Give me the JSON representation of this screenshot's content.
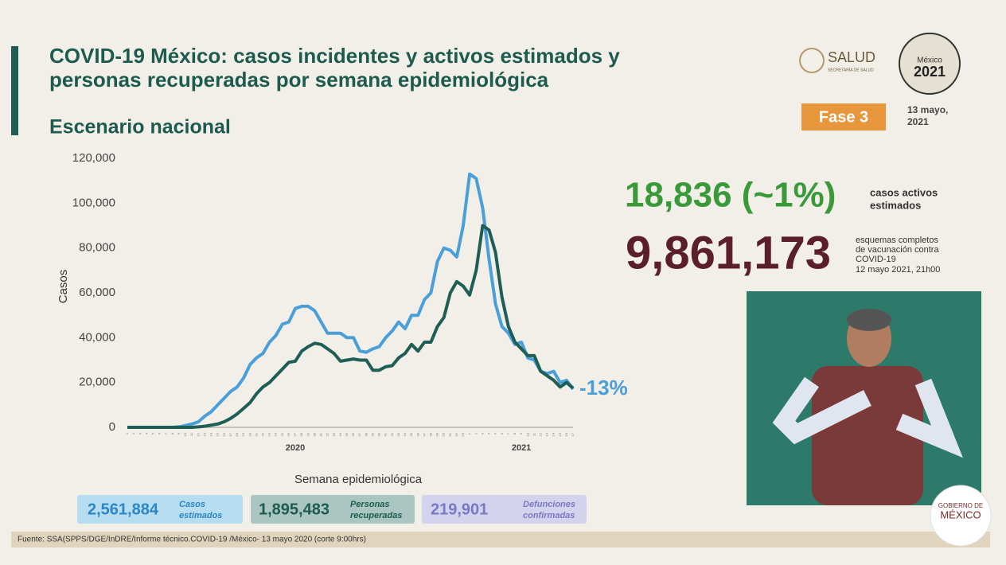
{
  "header": {
    "title": [
      "COVID-19 México: casos incidentes y activos estimados y",
      "personas recuperadas por semana epidemiológica"
    ],
    "subtitle": "Escenario nacional",
    "agency": "SALUD",
    "agency_sub": "SECRETARÍA DE SALUD",
    "logo": [
      "México",
      "2021"
    ],
    "phase": "Fase 3",
    "date": [
      "13 mayo,",
      "2021"
    ]
  },
  "chart_data": {
    "type": "line",
    "xlabel": "Semana epidemiológica",
    "ylabel": "Casos",
    "categories": [
      "1",
      "2",
      "3",
      "4",
      "5",
      "6",
      "7",
      "8",
      "9",
      "10",
      "11",
      "12",
      "13",
      "14",
      "15",
      "16",
      "17",
      "18",
      "19",
      "20",
      "21",
      "22",
      "23",
      "24",
      "25",
      "26",
      "27",
      "28",
      "29",
      "30",
      "31",
      "32",
      "33",
      "34",
      "35",
      "36",
      "37",
      "38",
      "39",
      "40",
      "41",
      "42",
      "43",
      "44",
      "45",
      "46",
      "47",
      "48",
      "49",
      "50",
      "51",
      "52",
      "53",
      "1",
      "2",
      "3",
      "4",
      "5",
      "6",
      "7",
      "8",
      "9",
      "10",
      "11",
      "12",
      "13",
      "14",
      "15",
      "16",
      "17"
    ],
    "year_labels": [
      "2020",
      "2021"
    ],
    "series": [
      {
        "color": "#4a9fd8",
        "values": [
          0,
          0,
          0,
          0,
          0,
          0,
          0,
          0,
          200,
          800,
          1500,
          2500,
          5000,
          7000,
          10000,
          13000,
          16000,
          18000,
          22000,
          28000,
          31000,
          33000,
          38000,
          41000,
          46000,
          47000,
          53000,
          54000,
          54000,
          52000,
          47000,
          42000,
          42000,
          42000,
          40000,
          40000,
          34000,
          33500,
          35000,
          36000,
          40000,
          43000,
          47000,
          44000,
          50000,
          50000,
          57000,
          60000,
          74000,
          80000,
          79000,
          76000,
          90000,
          113000,
          111000,
          98000,
          75000,
          55000,
          45000,
          42000,
          37000,
          38000,
          31000,
          30000,
          25000,
          24000,
          25000,
          20000,
          21000,
          17000
        ]
      },
      {
        "color": "#1f5e55",
        "values": [
          0,
          0,
          0,
          0,
          0,
          0,
          0,
          0,
          0,
          0,
          0,
          200,
          500,
          1000,
          1500,
          2500,
          4000,
          6000,
          8500,
          11000,
          15000,
          18000,
          20000,
          23000,
          26000,
          29000,
          29500,
          34000,
          36000,
          37500,
          37000,
          35000,
          33000,
          29500,
          30000,
          30500,
          30000,
          30000,
          25500,
          25500,
          27000,
          27500,
          31000,
          33000,
          37000,
          34000,
          38000,
          38000,
          45000,
          49000,
          60000,
          65000,
          63000,
          59000,
          70000,
          90000,
          88000,
          78000,
          58000,
          45000,
          38000,
          35000,
          32000,
          32000,
          25000,
          23000,
          21000,
          18000,
          20000,
          17500
        ]
      }
    ],
    "ylim": [
      0,
      120000
    ],
    "yticks": [
      0,
      {
        "value": 20000,
        "label": "20,000"
      },
      {
        "value": 40000,
        "label": "40,000"
      },
      {
        "value": 60000,
        "label": "60,000"
      },
      {
        "value": 80000,
        "label": "80,000"
      },
      {
        "value": 100000,
        "label": "100,000"
      },
      {
        "value": 120000,
        "label": "120,000"
      }
    ],
    "annotation": "-13%"
  },
  "stats": [
    {
      "value": "18,836 (~1%)",
      "label": [
        "casos activos",
        "estimados"
      ]
    },
    {
      "value": "9,861,173",
      "label": [
        "esquemas completos",
        "de vacunación contra",
        "COVID-19",
        "12 mayo 2021, 21h00"
      ]
    }
  ],
  "totals": [
    {
      "value": "2,561,884",
      "label": [
        "Casos",
        "estimados"
      ]
    },
    {
      "value": "1,895,483",
      "label": [
        "Personas",
        "recuperadas"
      ]
    },
    {
      "value": "219,901",
      "label": [
        "Defunciones",
        "confirmadas"
      ]
    }
  ],
  "footer": "Fuente: SSA(SPPS/DGE/InDRE/Informe técnico.COVID-19 /México- 13 mayo 2020 (corte 9:00hrs)",
  "gov_logo": [
    "GOBIERNO DE",
    "MÉXICO"
  ]
}
